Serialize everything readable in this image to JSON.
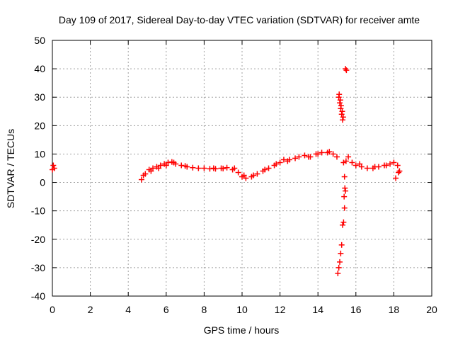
{
  "chart_data": {
    "type": "scatter",
    "title": "Day 109 of 2017, Sidereal Day-to-day VTEC variation (SDTVAR) for receiver amte",
    "xlabel": "GPS time / hours",
    "ylabel": "SDTVAR / TECUs",
    "xlim": [
      0,
      20
    ],
    "ylim": [
      -40,
      50
    ],
    "x_ticks": [
      0,
      2,
      4,
      6,
      8,
      10,
      12,
      14,
      16,
      18,
      20
    ],
    "y_ticks": [
      -40,
      -30,
      -20,
      -10,
      0,
      10,
      20,
      30,
      40,
      50
    ],
    "grid": true,
    "marker": "plus",
    "color": "#ff0000",
    "series": [
      {
        "name": "SDTVAR",
        "x": [
          0.0,
          0.05,
          0.1,
          4.7,
          4.9,
          5.1,
          5.3,
          5.5,
          5.7,
          5.9,
          6.1,
          6.3,
          6.5,
          6.8,
          7.1,
          7.4,
          7.7,
          8.0,
          8.3,
          8.6,
          8.9,
          9.2,
          9.5,
          9.8,
          10.0,
          10.2,
          10.5,
          10.8,
          11.1,
          11.4,
          11.7,
          12.0,
          12.2,
          12.5,
          12.8,
          13.0,
          13.3,
          13.6,
          13.9,
          14.2,
          14.5,
          14.8,
          15.0,
          15.1,
          15.15,
          15.2,
          15.25,
          15.3,
          15.35,
          15.4,
          15.45,
          15.5,
          15.1,
          15.15,
          15.2,
          15.25,
          15.3,
          15.35,
          15.4,
          15.45,
          15.6,
          15.8,
          16.0,
          16.3,
          16.6,
          16.9,
          17.2,
          17.5,
          17.8,
          18.0,
          18.2,
          18.3,
          4.8,
          5.2,
          5.6,
          6.0,
          6.4,
          7.0,
          8.5,
          9.0,
          9.6,
          10.1,
          10.6,
          11.2,
          11.8,
          12.4,
          13.5,
          14.0,
          14.6,
          15.05,
          15.12,
          15.18,
          15.22,
          15.28,
          15.33,
          15.38,
          15.42,
          15.48,
          16.2,
          17.0,
          17.6,
          18.1,
          18.25
        ],
        "y": [
          4.5,
          6.0,
          5.0,
          1.0,
          3.0,
          4.5,
          5.0,
          5.5,
          6.0,
          6.5,
          7.0,
          7.2,
          6.5,
          6.0,
          5.5,
          5.2,
          5.0,
          5.0,
          4.8,
          4.8,
          5.0,
          5.2,
          4.5,
          3.5,
          2.0,
          1.5,
          2.0,
          3.0,
          4.0,
          5.0,
          6.0,
          7.0,
          8.0,
          8.0,
          8.5,
          9.0,
          9.5,
          9.0,
          10.0,
          10.5,
          10.5,
          10.0,
          9.0,
          30.0,
          28.0,
          26.0,
          24.0,
          22.0,
          7.0,
          2.0,
          40.0,
          39.5,
          -30.0,
          -28.0,
          -25.0,
          -22.0,
          -15.0,
          -14.0,
          -9.0,
          -3.0,
          9.0,
          7.0,
          6.0,
          5.5,
          5.0,
          5.0,
          5.5,
          6.0,
          6.5,
          7.0,
          6.0,
          4.0,
          2.5,
          4.0,
          5.0,
          6.0,
          7.0,
          5.8,
          5.0,
          4.9,
          5.0,
          2.5,
          2.5,
          4.5,
          6.5,
          7.5,
          9.0,
          10.0,
          10.8,
          -32.0,
          31.0,
          29.0,
          27.0,
          25.0,
          23.0,
          -5.0,
          -2.0,
          7.5,
          6.5,
          5.5,
          6.0,
          1.5,
          3.5
        ]
      }
    ]
  }
}
